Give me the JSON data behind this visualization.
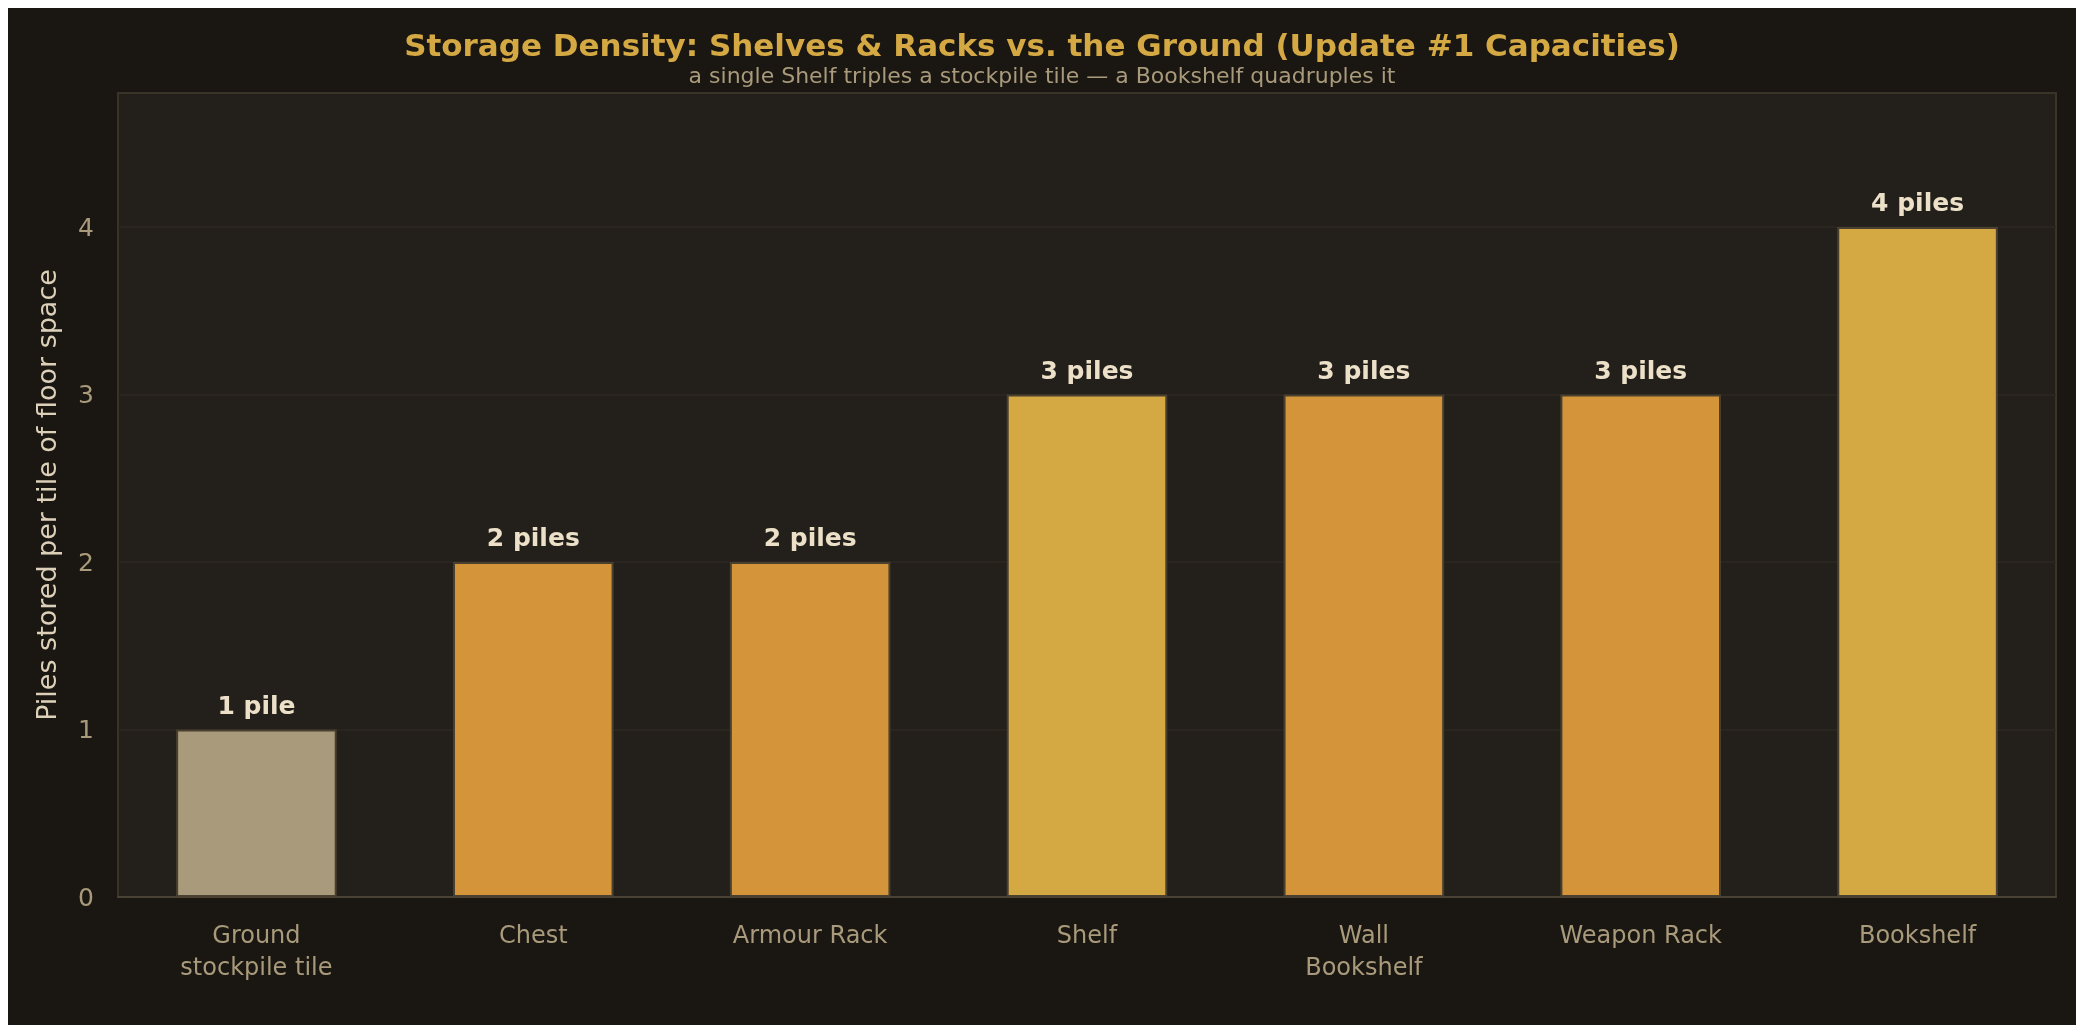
{
  "chart_data": {
    "type": "bar",
    "title": "Storage Density: Shelves & Racks vs. the Ground (Update #1 Capacities)",
    "subtitle": "a single Shelf triples a stockpile tile — a Bookshelf quadruples it",
    "ylabel": "Piles stored per tile of floor space",
    "categories": [
      "Ground\nstockpile tile",
      "Chest",
      "Armour Rack",
      "Shelf",
      "Wall\nBookshelf",
      "Weapon Rack",
      "Bookshelf"
    ],
    "values": [
      1,
      2,
      2,
      3,
      3,
      3,
      4
    ],
    "colors": [
      "#a89a7a",
      "#d4943a",
      "#d4943a",
      "#d4a843",
      "#d4943a",
      "#d4943a",
      "#d4a843"
    ],
    "value_labels": [
      "1 pile",
      "2 piles",
      "2 piles",
      "3 piles",
      "3 piles",
      "3 piles",
      "4 piles"
    ],
    "ylim": [
      0,
      4.8
    ],
    "yticks": [
      0,
      1,
      2,
      3,
      4
    ],
    "grid": "y"
  }
}
